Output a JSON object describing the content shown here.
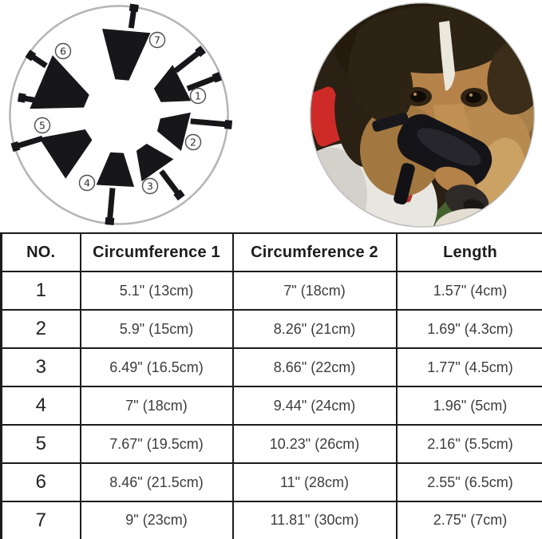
{
  "colors": {
    "background": "#ffffff",
    "table_border": "#1b1b1b",
    "table_text": "#3c3c3c",
    "header_text": "#1d1d1d",
    "muzzle_black": "#17171a",
    "circle_border": "#b5b5b5",
    "collar_red": "#ce2a28",
    "foliage_green": "#44622f",
    "dog_tan": "#b5834a"
  },
  "muzzle_diagram": {
    "labels": [
      "1",
      "2",
      "3",
      "4",
      "5",
      "6",
      "7"
    ]
  },
  "size_table": {
    "headers": [
      "NO.",
      "Circumference 1",
      "Circumference 2",
      "Length"
    ],
    "rows": [
      [
        "1",
        "5.1\" (13cm)",
        "7\" (18cm)",
        "1.57\" (4cm)"
      ],
      [
        "2",
        "5.9\" (15cm)",
        "8.26\" (21cm)",
        "1.69\" (4.3cm)"
      ],
      [
        "3",
        "6.49\" (16.5cm)",
        "8.66\" (22cm)",
        "1.77\" (4.5cm)"
      ],
      [
        "4",
        "7\" (18cm)",
        "9.44\" (24cm)",
        "1.96\" (5cm)"
      ],
      [
        "5",
        "7.67\" (19.5cm)",
        "10.23\" (26cm)",
        "2.16\" (5.5cm)"
      ],
      [
        "6",
        "8.46\" (21.5cm)",
        "11\" (28cm)",
        "2.55\" (6.5cm)"
      ],
      [
        "7",
        "9\" (23cm)",
        "11.81\" (30cm)",
        "2.75\" (7cm)"
      ]
    ]
  },
  "chart_data": {
    "type": "table",
    "columns": [
      "NO.",
      "Circumference 1",
      "Circumference 2",
      "Length"
    ],
    "rows": [
      [
        "1",
        "5.1\" (13cm)",
        "7\" (18cm)",
        "1.57\" (4cm)"
      ],
      [
        "2",
        "5.9\" (15cm)",
        "8.26\" (21cm)",
        "1.69\" (4.3cm)"
      ],
      [
        "3",
        "6.49\" (16.5cm)",
        "8.66\" (22cm)",
        "1.77\" (4.5cm)"
      ],
      [
        "4",
        "7\" (18cm)",
        "9.44\" (24cm)",
        "1.96\" (5cm)"
      ],
      [
        "5",
        "7.67\" (19.5cm)",
        "10.23\" (26cm)",
        "2.16\" (5.5cm)"
      ],
      [
        "6",
        "8.46\" (21.5cm)",
        "11\" (28cm)",
        "2.55\" (6.5cm)"
      ],
      [
        "7",
        "9\" (23cm)",
        "11.81\" (30cm)",
        "2.75\" (7cm)"
      ]
    ]
  }
}
